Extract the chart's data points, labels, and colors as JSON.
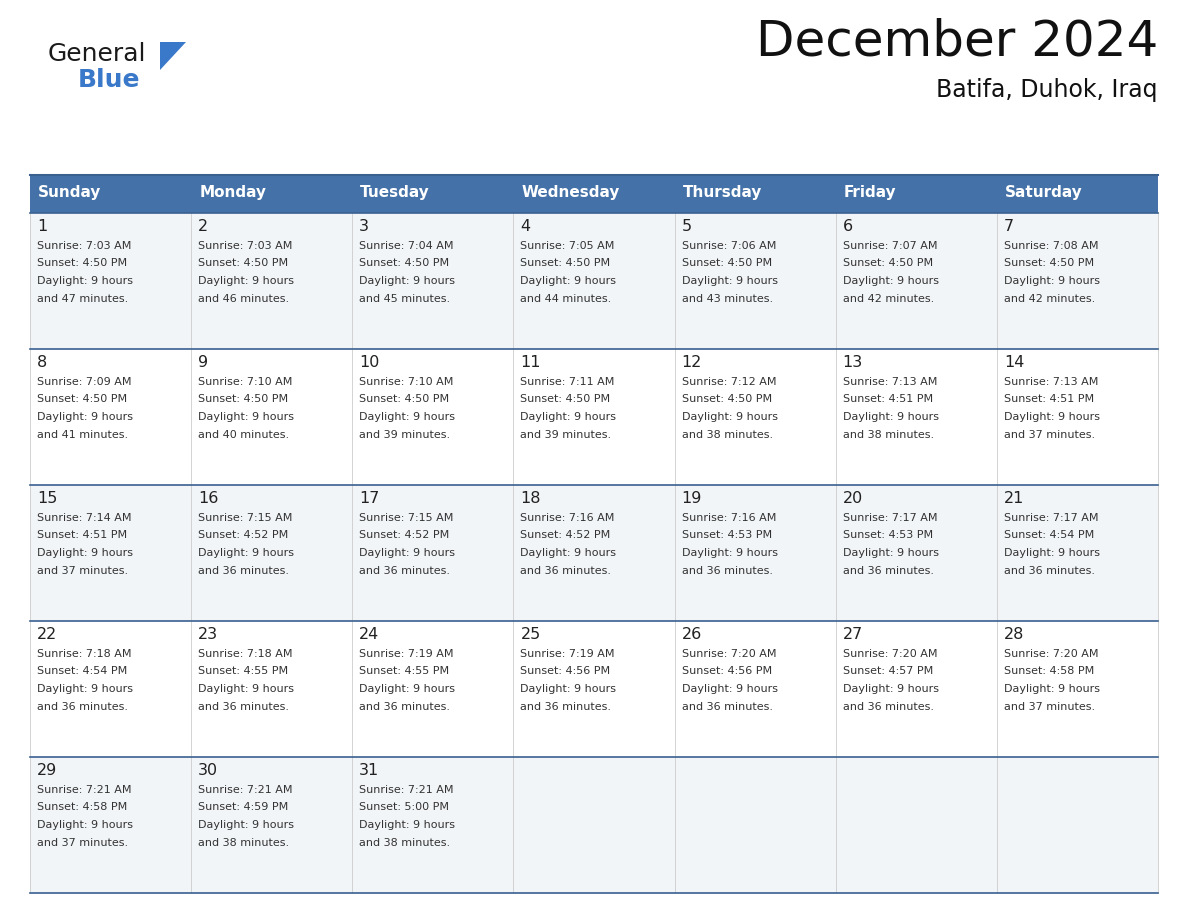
{
  "title": "December 2024",
  "subtitle": "Batifa, Duhok, Iraq",
  "header_bg": "#4472a8",
  "header_text": "#ffffff",
  "day_names": [
    "Sunday",
    "Monday",
    "Tuesday",
    "Wednesday",
    "Thursday",
    "Friday",
    "Saturday"
  ],
  "cell_bg_light": "#f2f5f8",
  "cell_bg_white": "#ffffff",
  "cell_text_color": "#333333",
  "day_num_color": "#222222",
  "grid_line_color": "#3a6090",
  "title_color": "#111111",
  "subtitle_color": "#111111",
  "logo_general_color": "#1a1a1a",
  "logo_blue_color": "#3a78c9",
  "logo_triangle_color": "#3a78c9",
  "days": [
    {
      "date": 1,
      "col": 0,
      "row": 0,
      "sunrise": "7:03 AM",
      "sunset": "4:50 PM",
      "daylight": "9 hours and 47 minutes."
    },
    {
      "date": 2,
      "col": 1,
      "row": 0,
      "sunrise": "7:03 AM",
      "sunset": "4:50 PM",
      "daylight": "9 hours and 46 minutes."
    },
    {
      "date": 3,
      "col": 2,
      "row": 0,
      "sunrise": "7:04 AM",
      "sunset": "4:50 PM",
      "daylight": "9 hours and 45 minutes."
    },
    {
      "date": 4,
      "col": 3,
      "row": 0,
      "sunrise": "7:05 AM",
      "sunset": "4:50 PM",
      "daylight": "9 hours and 44 minutes."
    },
    {
      "date": 5,
      "col": 4,
      "row": 0,
      "sunrise": "7:06 AM",
      "sunset": "4:50 PM",
      "daylight": "9 hours and 43 minutes."
    },
    {
      "date": 6,
      "col": 5,
      "row": 0,
      "sunrise": "7:07 AM",
      "sunset": "4:50 PM",
      "daylight": "9 hours and 42 minutes."
    },
    {
      "date": 7,
      "col": 6,
      "row": 0,
      "sunrise": "7:08 AM",
      "sunset": "4:50 PM",
      "daylight": "9 hours and 42 minutes."
    },
    {
      "date": 8,
      "col": 0,
      "row": 1,
      "sunrise": "7:09 AM",
      "sunset": "4:50 PM",
      "daylight": "9 hours and 41 minutes."
    },
    {
      "date": 9,
      "col": 1,
      "row": 1,
      "sunrise": "7:10 AM",
      "sunset": "4:50 PM",
      "daylight": "9 hours and 40 minutes."
    },
    {
      "date": 10,
      "col": 2,
      "row": 1,
      "sunrise": "7:10 AM",
      "sunset": "4:50 PM",
      "daylight": "9 hours and 39 minutes."
    },
    {
      "date": 11,
      "col": 3,
      "row": 1,
      "sunrise": "7:11 AM",
      "sunset": "4:50 PM",
      "daylight": "9 hours and 39 minutes."
    },
    {
      "date": 12,
      "col": 4,
      "row": 1,
      "sunrise": "7:12 AM",
      "sunset": "4:50 PM",
      "daylight": "9 hours and 38 minutes."
    },
    {
      "date": 13,
      "col": 5,
      "row": 1,
      "sunrise": "7:13 AM",
      "sunset": "4:51 PM",
      "daylight": "9 hours and 38 minutes."
    },
    {
      "date": 14,
      "col": 6,
      "row": 1,
      "sunrise": "7:13 AM",
      "sunset": "4:51 PM",
      "daylight": "9 hours and 37 minutes."
    },
    {
      "date": 15,
      "col": 0,
      "row": 2,
      "sunrise": "7:14 AM",
      "sunset": "4:51 PM",
      "daylight": "9 hours and 37 minutes."
    },
    {
      "date": 16,
      "col": 1,
      "row": 2,
      "sunrise": "7:15 AM",
      "sunset": "4:52 PM",
      "daylight": "9 hours and 36 minutes."
    },
    {
      "date": 17,
      "col": 2,
      "row": 2,
      "sunrise": "7:15 AM",
      "sunset": "4:52 PM",
      "daylight": "9 hours and 36 minutes."
    },
    {
      "date": 18,
      "col": 3,
      "row": 2,
      "sunrise": "7:16 AM",
      "sunset": "4:52 PM",
      "daylight": "9 hours and 36 minutes."
    },
    {
      "date": 19,
      "col": 4,
      "row": 2,
      "sunrise": "7:16 AM",
      "sunset": "4:53 PM",
      "daylight": "9 hours and 36 minutes."
    },
    {
      "date": 20,
      "col": 5,
      "row": 2,
      "sunrise": "7:17 AM",
      "sunset": "4:53 PM",
      "daylight": "9 hours and 36 minutes."
    },
    {
      "date": 21,
      "col": 6,
      "row": 2,
      "sunrise": "7:17 AM",
      "sunset": "4:54 PM",
      "daylight": "9 hours and 36 minutes."
    },
    {
      "date": 22,
      "col": 0,
      "row": 3,
      "sunrise": "7:18 AM",
      "sunset": "4:54 PM",
      "daylight": "9 hours and 36 minutes."
    },
    {
      "date": 23,
      "col": 1,
      "row": 3,
      "sunrise": "7:18 AM",
      "sunset": "4:55 PM",
      "daylight": "9 hours and 36 minutes."
    },
    {
      "date": 24,
      "col": 2,
      "row": 3,
      "sunrise": "7:19 AM",
      "sunset": "4:55 PM",
      "daylight": "9 hours and 36 minutes."
    },
    {
      "date": 25,
      "col": 3,
      "row": 3,
      "sunrise": "7:19 AM",
      "sunset": "4:56 PM",
      "daylight": "9 hours and 36 minutes."
    },
    {
      "date": 26,
      "col": 4,
      "row": 3,
      "sunrise": "7:20 AM",
      "sunset": "4:56 PM",
      "daylight": "9 hours and 36 minutes."
    },
    {
      "date": 27,
      "col": 5,
      "row": 3,
      "sunrise": "7:20 AM",
      "sunset": "4:57 PM",
      "daylight": "9 hours and 36 minutes."
    },
    {
      "date": 28,
      "col": 6,
      "row": 3,
      "sunrise": "7:20 AM",
      "sunset": "4:58 PM",
      "daylight": "9 hours and 37 minutes."
    },
    {
      "date": 29,
      "col": 0,
      "row": 4,
      "sunrise": "7:21 AM",
      "sunset": "4:58 PM",
      "daylight": "9 hours and 37 minutes."
    },
    {
      "date": 30,
      "col": 1,
      "row": 4,
      "sunrise": "7:21 AM",
      "sunset": "4:59 PM",
      "daylight": "9 hours and 38 minutes."
    },
    {
      "date": 31,
      "col": 2,
      "row": 4,
      "sunrise": "7:21 AM",
      "sunset": "5:00 PM",
      "daylight": "9 hours and 38 minutes."
    }
  ]
}
